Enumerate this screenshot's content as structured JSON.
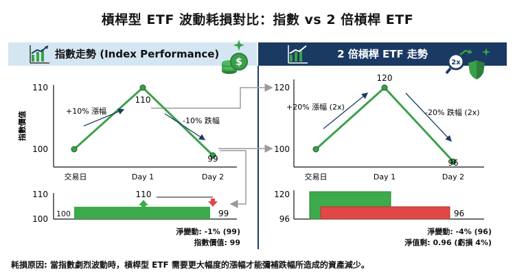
{
  "title": "槓桿型 ETF 波動耗損對比：指數 vs 2 倍槓桿 ETF",
  "left": {
    "header": "指數走勢 (Index Performance)",
    "ylabel": "指數價值",
    "ticks": [
      "110",
      "100"
    ],
    "categories": [
      "交易日",
      "Day 1",
      "Day 2"
    ],
    "point_labels": [
      "110",
      "99"
    ],
    "annotations": {
      "up": "+10% 漲幅",
      "down": "-10% 跌幅"
    },
    "bar_axis": [
      "110",
      "100"
    ],
    "bar_labels": {
      "start": "100",
      "peak": "110",
      "end": "99"
    },
    "summary": [
      "淨變動: -1% (99)",
      "指數價值: 99"
    ]
  },
  "right": {
    "header": "2 倍槓桿 ETF 走勢",
    "badge": "2x",
    "ticks": [
      "120",
      "100"
    ],
    "categories": [
      "交易日",
      "Day 1",
      "Day 2"
    ],
    "point_labels": [
      "120",
      "96"
    ],
    "annotations": {
      "up": "+20% 漲幅 (2x)",
      "down": "-20% 跌幅 (2x)"
    },
    "bar_axis": [
      "120",
      "96"
    ],
    "bar_labels": {
      "end": "96"
    },
    "summary": [
      "淨變動: -4% (96)",
      "淨值剩: 0.96 (虧損 4%)"
    ]
  },
  "footer": "耗損原因: 當指數劇烈波動時，槓桿型 ETF 需要更大幅度的漲幅才能彌補跌幅所造成的資產減少。",
  "colors": {
    "line": "#3aa04a",
    "bar_green": "#3daa4c",
    "bar_red": "#e04848",
    "navy": "#1b3a63",
    "light_blue": "#d4e6f2"
  },
  "icons": [
    "growth-chart-icon",
    "coin-stack-icon",
    "sparkle-icon",
    "magnifier-arrow-icon",
    "shield-icon"
  ],
  "chart_data": [
    {
      "type": "line",
      "categories": [
        "交易日",
        "Day 1",
        "Day 2"
      ],
      "values": [
        100,
        110,
        99
      ],
      "ylabel": "指數價值",
      "ylim": [
        100,
        110
      ]
    },
    {
      "type": "line",
      "categories": [
        "交易日",
        "Day 1",
        "Day 2"
      ],
      "values": [
        100,
        120,
        96
      ],
      "ylim": [
        100,
        120
      ]
    }
  ]
}
